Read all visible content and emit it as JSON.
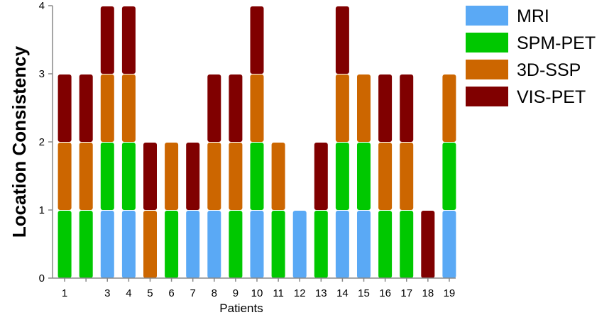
{
  "chart_data": {
    "type": "bar",
    "stacked": true,
    "xlabel": "Patients",
    "ylabel": "Location Consistency",
    "ylim": [
      0,
      4
    ],
    "yticks": [
      "0",
      "1",
      "2",
      "3",
      "4"
    ],
    "grid": false,
    "legend_position": "top-right",
    "categories": [
      "1",
      "",
      "3",
      "4",
      "5",
      "6",
      "7",
      "8",
      "9",
      "10",
      "11",
      "12",
      "13",
      "14",
      "15",
      "16",
      "17",
      "18",
      "19"
    ],
    "series": [
      {
        "name": "MRI",
        "color": "#5aa9f5",
        "values": [
          0,
          0,
          1,
          1,
          0,
          0,
          1,
          1,
          0,
          1,
          0,
          1,
          0,
          1,
          1,
          0,
          0,
          0,
          1
        ]
      },
      {
        "name": "SPM-PET",
        "color": "#00c800",
        "values": [
          1,
          1,
          1,
          1,
          0,
          1,
          0,
          0,
          1,
          1,
          1,
          0,
          1,
          1,
          1,
          1,
          1,
          0,
          1
        ]
      },
      {
        "name": "3D-SSP",
        "color": "#cc6600",
        "values": [
          1,
          1,
          1,
          1,
          1,
          1,
          0,
          1,
          1,
          1,
          1,
          0,
          0,
          1,
          1,
          1,
          1,
          0,
          1
        ]
      },
      {
        "name": "VIS-PET",
        "color": "#800000",
        "values": [
          1,
          1,
          1,
          1,
          1,
          0,
          1,
          1,
          1,
          1,
          0,
          0,
          1,
          1,
          0,
          1,
          1,
          1,
          0
        ]
      }
    ]
  }
}
